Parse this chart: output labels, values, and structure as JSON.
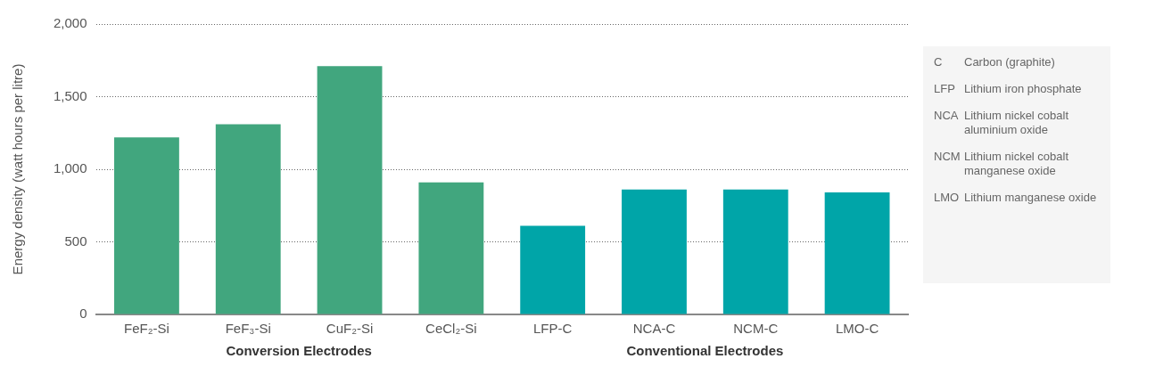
{
  "chart_data": [
    {
      "type": "bar",
      "ylabel": "Energy density (watt hours per litre)",
      "categories": [
        "FeF₂-Si",
        "FeF₃-Si",
        "CuF₂-Si",
        "CeCl₂-Si",
        "LFP-C",
        "NCA-C",
        "NCM-C",
        "LMO-C"
      ],
      "values": [
        1220,
        1310,
        1710,
        910,
        610,
        860,
        860,
        840
      ],
      "colors": [
        "#41a67e",
        "#41a67e",
        "#41a67e",
        "#41a67e",
        "#00a5a8",
        "#00a5a8",
        "#00a5a8",
        "#00a5a8"
      ],
      "ylim": [
        0,
        2000
      ],
      "yticks": [
        0,
        500,
        {
          "value": 1000,
          "label": "1,000"
        },
        {
          "value": 1500,
          "label": "1,500"
        },
        {
          "value": 2000,
          "label": "2,000"
        }
      ],
      "grid": "y",
      "legend": false,
      "annotations": [
        "Conversion Electrodes",
        "Conventional Electrodes"
      ]
    },
    {
      "type": "other",
      "categories": [
        "C",
        "LFP",
        "NCA",
        "NCM",
        "LMO"
      ],
      "annotations": [
        "Carbon (graphite)",
        "Lithium iron phosphate",
        "Lithium nickel cobalt aluminium oxide",
        "Lithium nickel cobalt manganese oxide",
        "Lithium manganese oxide"
      ]
    }
  ]
}
